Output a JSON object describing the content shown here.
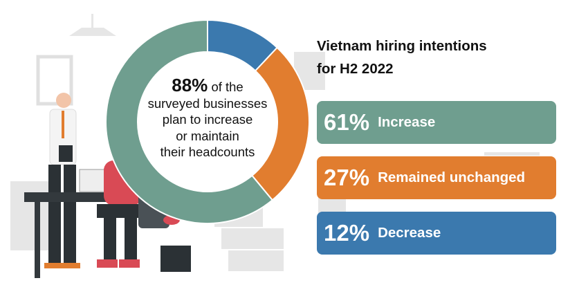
{
  "title_line1": "Vietnam hiring intentions",
  "title_line2": "for H2 2022",
  "center": {
    "value": "88%",
    "text1": "of the",
    "text2": "surveyed businesses",
    "text3": "plan to increase",
    "text4": "or maintain",
    "text5": "their headcounts"
  },
  "chart_data": {
    "type": "pie",
    "donut": true,
    "categories": [
      "Decrease",
      "Remained unchanged",
      "Increase"
    ],
    "values": [
      12,
      27,
      61
    ],
    "colors": [
      "#3b79ae",
      "#e17d2f",
      "#6f9e8f"
    ],
    "start": "top, clockwise"
  },
  "legend": [
    {
      "pct": "61%",
      "label": "Increase",
      "color": "#6f9e8f"
    },
    {
      "pct": "27%",
      "label": "Remained unchanged",
      "color": "#e17d2f"
    },
    {
      "pct": "12%",
      "label": "Decrease",
      "color": "#3b79ae"
    }
  ]
}
